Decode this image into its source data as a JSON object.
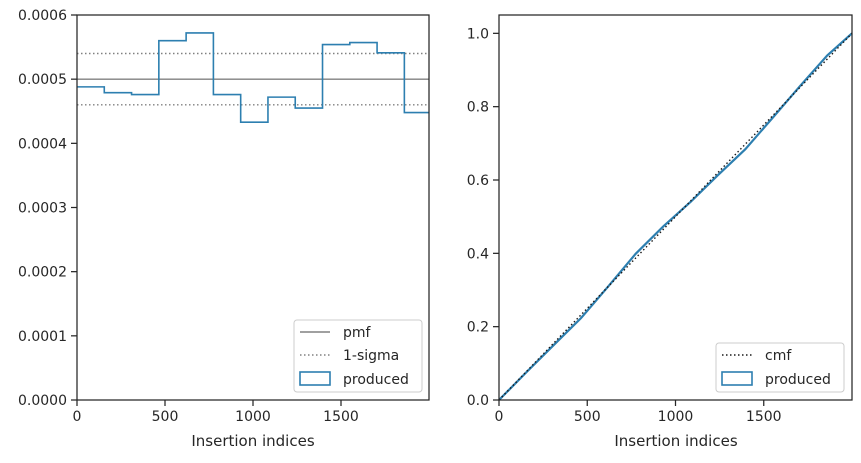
{
  "chart_data": [
    {
      "type": "step",
      "xlabel": "Insertion indices",
      "ylabel": "",
      "xlim": [
        0,
        2000
      ],
      "ylim": [
        0,
        0.0006
      ],
      "xticks": [
        0,
        500,
        1000,
        1500
      ],
      "xtick_labels": [
        "0",
        "500",
        "1000",
        "1500"
      ],
      "yticks": [
        0,
        0.0001,
        0.0002,
        0.0003,
        0.0004,
        0.0005,
        0.0006
      ],
      "ytick_labels": [
        "0.0000",
        "0.0001",
        "0.0002",
        "0.0003",
        "0.0004",
        "0.0005",
        "0.0006"
      ],
      "legend_position": "lower right",
      "lines": [
        {
          "name": "pmf",
          "y": 0.0005,
          "style": "solid",
          "color": "#808080"
        },
        {
          "name": "1-sigma",
          "y": [
            0.00046,
            0.00054
          ],
          "style": "dotted",
          "color": "#808080"
        }
      ],
      "series": [
        {
          "name": "produced",
          "color": "#2d7fb0",
          "bin_edges": [
            0,
            155,
            310,
            465,
            620,
            775,
            930,
            1085,
            1240,
            1395,
            1550,
            1705,
            1860,
            2000
          ],
          "values": [
            0.000488,
            0.000479,
            0.000476,
            0.00056,
            0.000572,
            0.000476,
            0.000433,
            0.000472,
            0.000455,
            0.000554,
            0.000557,
            0.000541,
            0.000448
          ]
        }
      ]
    },
    {
      "type": "line",
      "xlabel": "Insertion indices",
      "ylabel": "",
      "xlim": [
        0,
        2000
      ],
      "ylim": [
        0,
        1.05
      ],
      "xticks": [
        0,
        500,
        1000,
        1500
      ],
      "xtick_labels": [
        "0",
        "500",
        "1000",
        "1500"
      ],
      "yticks": [
        0,
        0.2,
        0.4,
        0.6,
        0.8,
        1.0
      ],
      "ytick_labels": [
        "0.0",
        "0.2",
        "0.4",
        "0.6",
        "0.8",
        "1.0"
      ],
      "legend_position": "lower right",
      "series": [
        {
          "name": "cmf",
          "style": "dotted",
          "color": "#1a1a1a",
          "x": [
            0,
            2000
          ],
          "y": [
            0,
            1.0
          ]
        },
        {
          "name": "produced",
          "style": "solid",
          "color": "#2d7fb0",
          "x": [
            0,
            155,
            310,
            465,
            620,
            775,
            930,
            1085,
            1240,
            1395,
            1550,
            1705,
            1860,
            2000
          ],
          "y": [
            0,
            0.0756,
            0.1498,
            0.2236,
            0.3104,
            0.3991,
            0.4729,
            0.54,
            0.6131,
            0.6836,
            0.7695,
            0.8558,
            0.9397,
            1.0
          ]
        }
      ]
    }
  ]
}
